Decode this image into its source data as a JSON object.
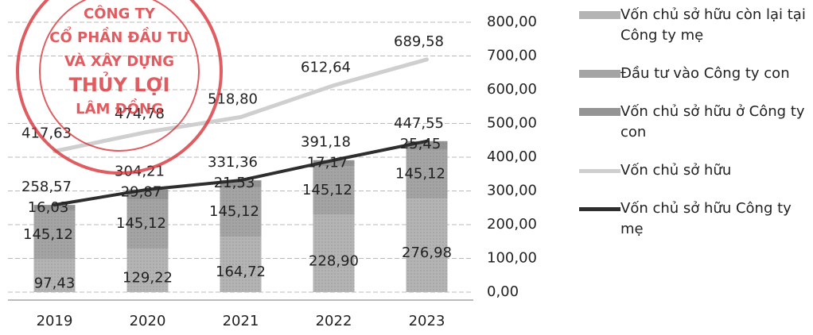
{
  "chart_data": {
    "type": "bar",
    "categories": [
      "2019",
      "2020",
      "2021",
      "2022",
      "2023"
    ],
    "stacked": true,
    "series": [
      {
        "name": "Vốn chủ sở hữu còn lại tại Công ty mẹ",
        "type": "bar",
        "color": "#b4b4b4",
        "values": [
          97.43,
          129.22,
          164.72,
          228.9,
          276.98
        ],
        "value_labels": [
          "97,43",
          "129,22",
          "164,72",
          "228,90",
          "276,98"
        ]
      },
      {
        "name": "Đầu tư vào Công ty con",
        "type": "bar",
        "color": "#a4a4a4",
        "values": [
          145.12,
          145.12,
          145.12,
          145.12,
          145.12
        ],
        "value_labels": [
          "145,12",
          "145,12",
          "145,12",
          "145,12",
          "145,12"
        ]
      },
      {
        "name": "Vốn chủ sở hữu ở Công ty con",
        "type": "bar",
        "color": "#949494",
        "values": [
          16.03,
          29.87,
          21.53,
          17.17,
          25.45
        ],
        "value_labels": [
          "16,03",
          "29,87",
          "21,53",
          "17,17",
          "25,45"
        ]
      },
      {
        "name": "Vốn chủ sở hữu",
        "type": "line",
        "color": "#cfcfcf",
        "values": [
          417.63,
          474.78,
          518.8,
          612.64,
          689.58
        ],
        "value_labels": [
          "417,63",
          "474,78",
          "518,80",
          "612,64",
          "689,58"
        ]
      },
      {
        "name": "Vốn chủ sở hữu Công ty mẹ",
        "type": "line",
        "color": "#2e2e2e",
        "values": [
          258.57,
          304.21,
          331.36,
          391.18,
          447.55
        ],
        "value_labels": [
          "258,57",
          "304,21",
          "331,36",
          "391,18",
          "447,55"
        ]
      }
    ],
    "ylim": [
      0,
      800
    ],
    "yticks": [
      {
        "value": 0,
        "label": "0,00"
      },
      {
        "value": 100,
        "label": "100,00"
      },
      {
        "value": 200,
        "label": "200,00"
      },
      {
        "value": 300,
        "label": "300,00"
      },
      {
        "value": 400,
        "label": "400,00"
      },
      {
        "value": 500,
        "label": "500,00"
      },
      {
        "value": 600,
        "label": "600,00"
      },
      {
        "value": 700,
        "label": "700,00"
      },
      {
        "value": 800,
        "label": "800,00"
      }
    ],
    "y_axis_side": "right",
    "grid": true,
    "legend": "right"
  },
  "stamp": {
    "lines": [
      "CÔNG TY",
      "CỔ PHẦN ĐẦU TƯ",
      "VÀ XÂY DỰNG",
      "THỦY LỢI",
      "LÂM ĐỒNG"
    ]
  }
}
